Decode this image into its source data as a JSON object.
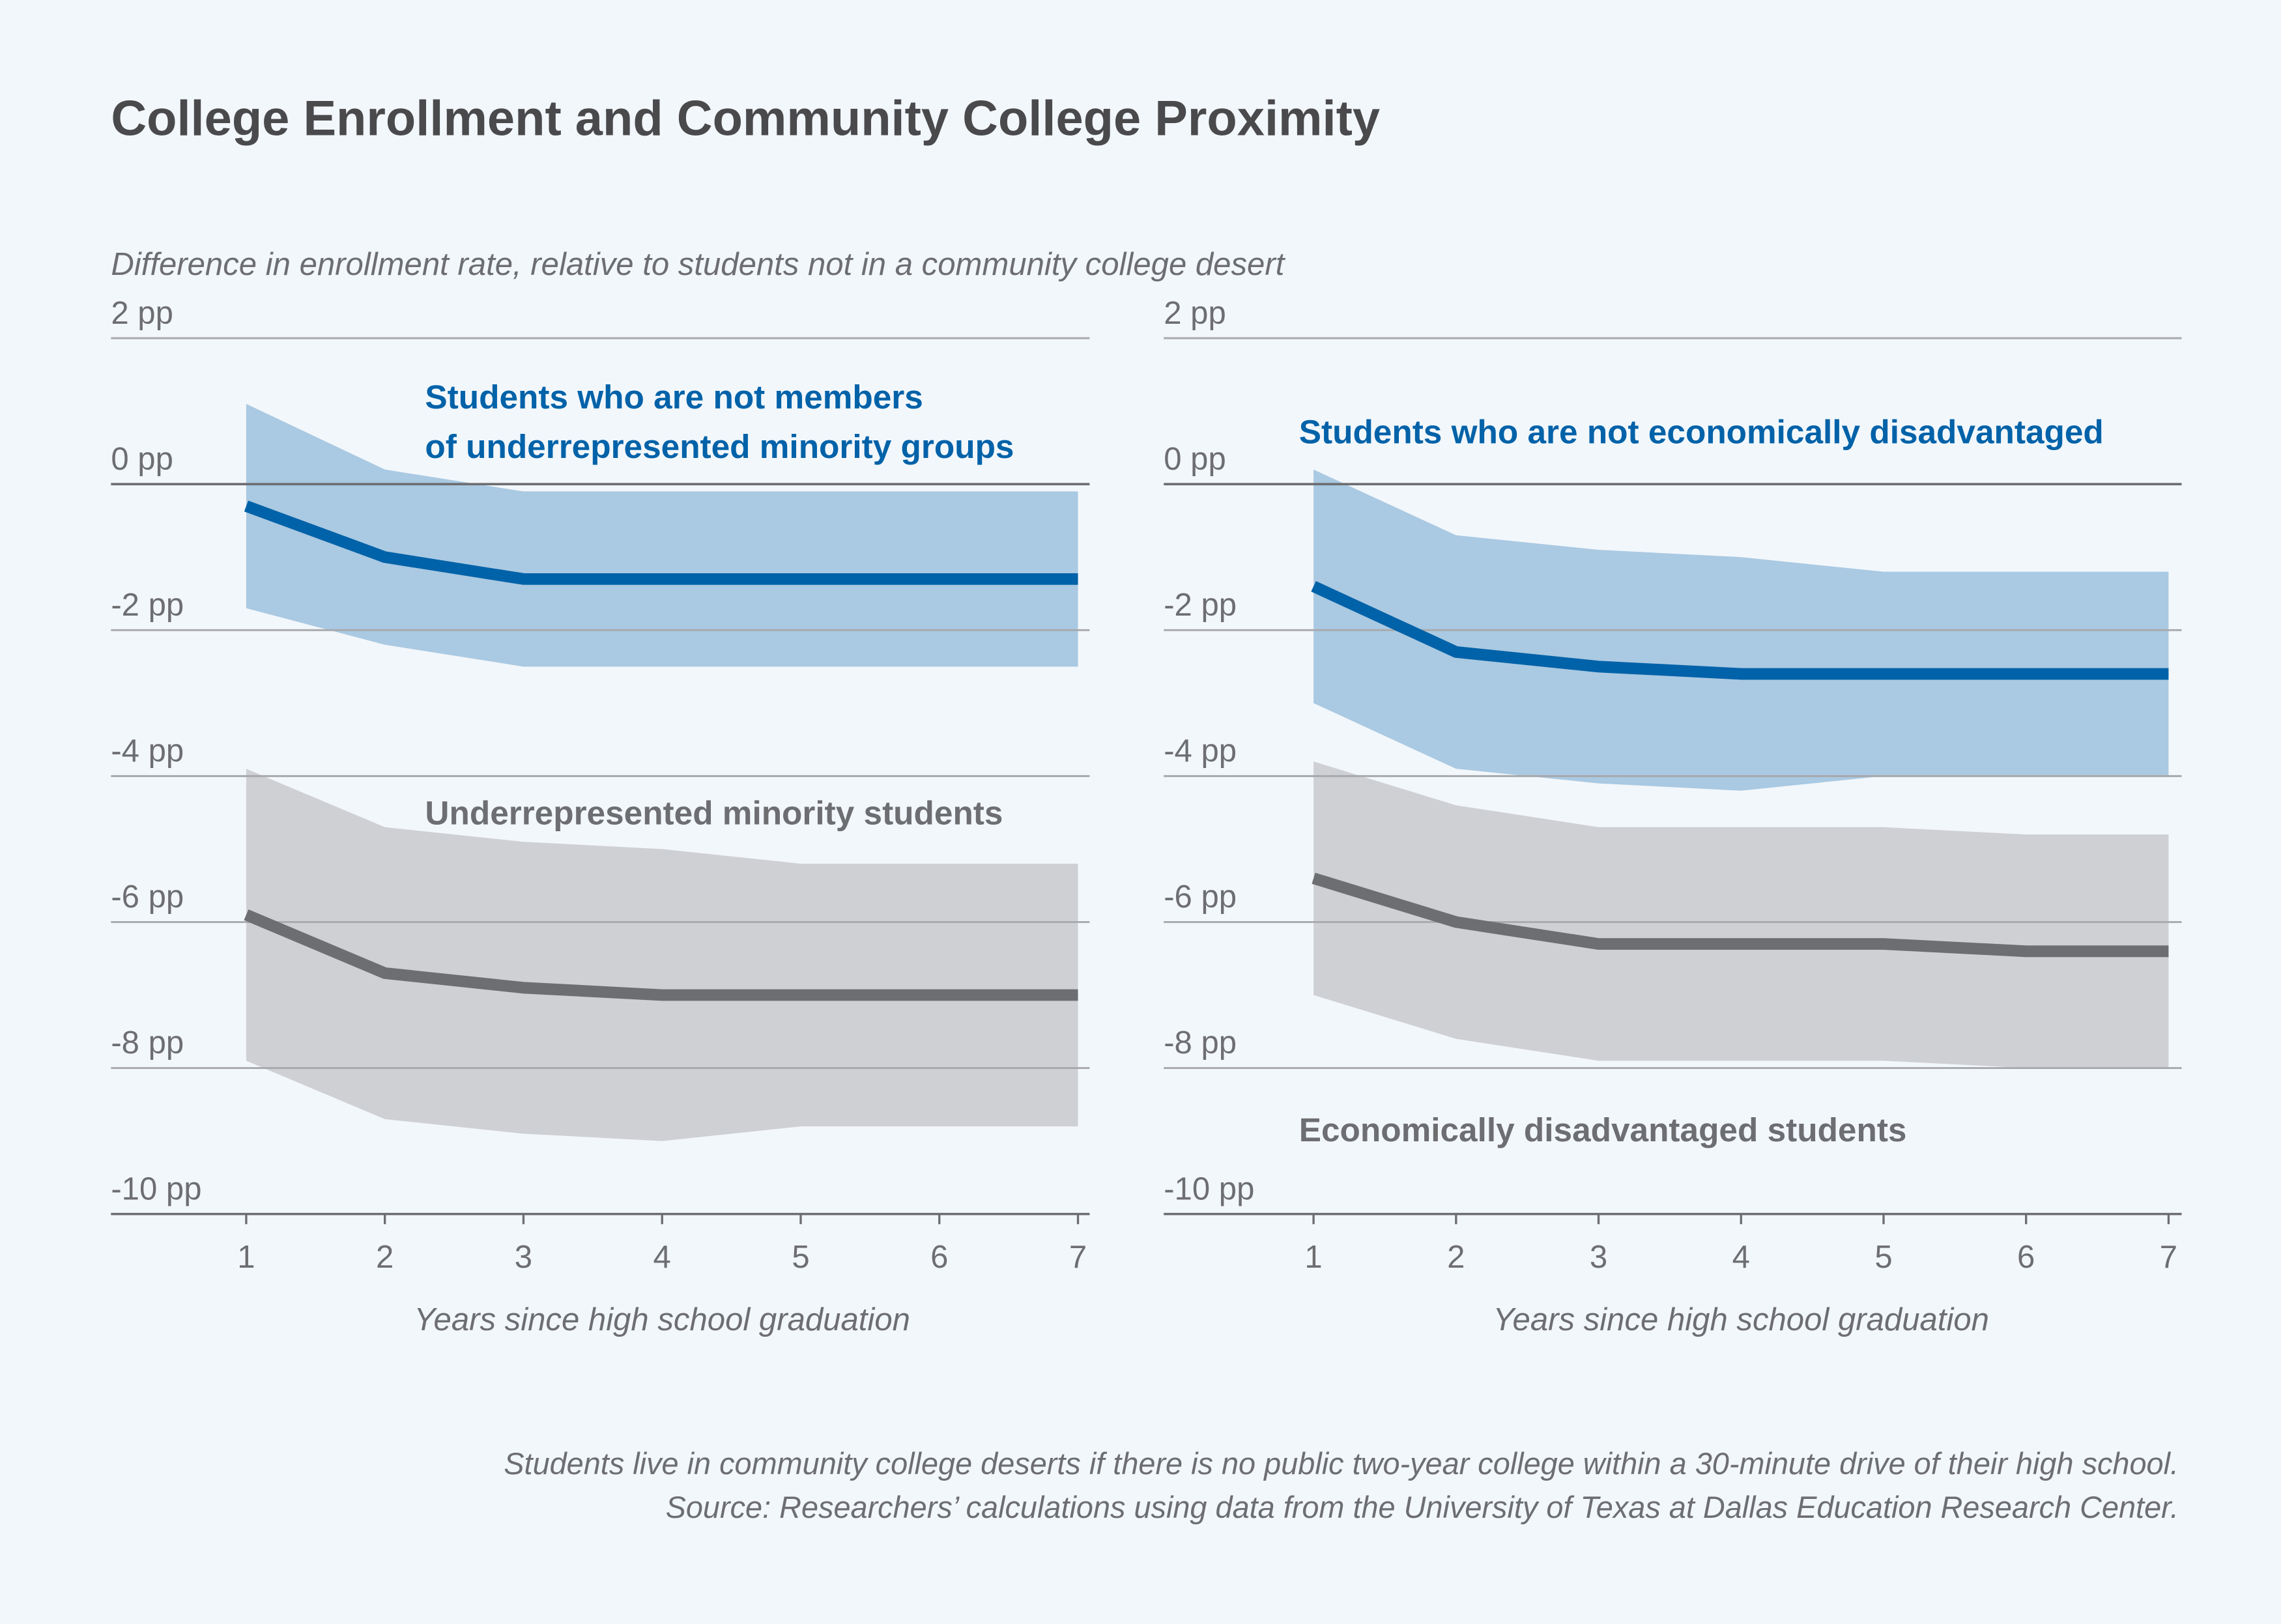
{
  "title": "College Enrollment and Community College Proximity",
  "subtitle": "Difference in enrollment rate, relative to students not in a community college desert",
  "notes": [
    "Students live in community college deserts if there is no public two-year college within a 30-minute drive of their high school.",
    "Source: Researchers’ calculations using data from the University of Texas at Dallas Education Research Center."
  ],
  "colors": {
    "blue_line": "#0062a8",
    "blue_band": "#aac9e2",
    "gray_line": "#6d6e71",
    "gray_band": "#cfd0d4",
    "blue_label": "#0062a8",
    "gray_label": "#6d6e71"
  },
  "chart_data": [
    {
      "type": "line",
      "xlabel": "Years since high school graduation",
      "ylabel": "",
      "x": [
        1,
        2,
        3,
        4,
        5,
        6,
        7
      ],
      "ylim": [
        -10,
        2
      ],
      "yticks": [
        "2 pp",
        "0 pp",
        "-2 pp",
        "-4 pp",
        "-6 pp",
        "-8 pp",
        "-10 pp"
      ],
      "xticks": [
        "1",
        "2",
        "3",
        "4",
        "5",
        "6",
        "7"
      ],
      "grid": true,
      "series": [
        {
          "name": "Students who are not members of underrepresented minority groups",
          "label_lines": [
            "Students who are not members",
            "of underrepresented minority groups"
          ],
          "color": "blue",
          "values": [
            -0.3,
            -1.0,
            -1.3,
            -1.3,
            -1.3,
            -1.3,
            -1.3
          ],
          "upper": [
            1.1,
            0.2,
            -0.1,
            -0.1,
            -0.1,
            -0.1,
            -0.1
          ],
          "lower": [
            -1.7,
            -2.2,
            -2.5,
            -2.5,
            -2.5,
            -2.5,
            -2.5
          ]
        },
        {
          "name": "Underrepresented minority students",
          "label_lines": [
            "Underrepresented minority students"
          ],
          "color": "gray",
          "values": [
            -5.9,
            -6.7,
            -6.9,
            -7.0,
            -7.0,
            -7.0,
            -7.0
          ],
          "upper": [
            -3.9,
            -4.7,
            -4.9,
            -5.0,
            -5.2,
            -5.2,
            -5.2
          ],
          "lower": [
            -7.9,
            -8.7,
            -8.9,
            -9.0,
            -8.8,
            -8.8,
            -8.8
          ]
        }
      ]
    },
    {
      "type": "line",
      "xlabel": "Years since high school graduation",
      "ylabel": "",
      "x": [
        1,
        2,
        3,
        4,
        5,
        6,
        7
      ],
      "ylim": [
        -10,
        2
      ],
      "yticks": [
        "2 pp",
        "0 pp",
        "-2 pp",
        "-4 pp",
        "-6 pp",
        "-8 pp",
        "-10 pp"
      ],
      "xticks": [
        "1",
        "2",
        "3",
        "4",
        "5",
        "6",
        "7"
      ],
      "grid": true,
      "series": [
        {
          "name": "Students who are not economically disadvantaged",
          "label_lines": [
            "Students who are not economically disadvantaged"
          ],
          "color": "blue",
          "values": [
            -1.4,
            -2.3,
            -2.5,
            -2.6,
            -2.6,
            -2.6,
            -2.6
          ],
          "upper": [
            0.2,
            -0.7,
            -0.9,
            -1.0,
            -1.2,
            -1.2,
            -1.2
          ],
          "lower": [
            -3.0,
            -3.9,
            -4.1,
            -4.2,
            -4.0,
            -4.0,
            -4.0
          ]
        },
        {
          "name": "Economically disadvantaged students",
          "label_lines": [
            "Economically disadvantaged students"
          ],
          "color": "gray",
          "values": [
            -5.4,
            -6.0,
            -6.3,
            -6.3,
            -6.3,
            -6.4,
            -6.4
          ],
          "upper": [
            -3.8,
            -4.4,
            -4.7,
            -4.7,
            -4.7,
            -4.8,
            -4.8
          ],
          "lower": [
            -7.0,
            -7.6,
            -7.9,
            -7.9,
            -7.9,
            -8.0,
            -8.0
          ]
        }
      ]
    }
  ]
}
